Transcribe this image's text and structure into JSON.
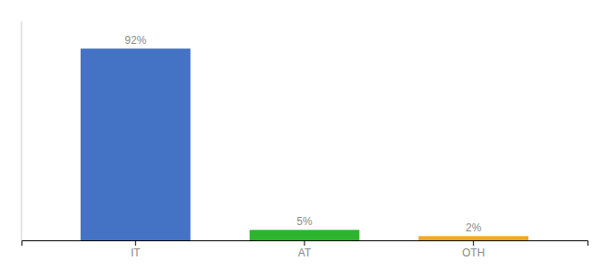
{
  "chart_data": {
    "type": "bar",
    "categories": [
      "IT",
      "AT",
      "OTH"
    ],
    "values": [
      92,
      5,
      2
    ],
    "value_labels": [
      "92%",
      "5%",
      "2%"
    ],
    "colors": [
      "#4472c4",
      "#2db52d",
      "#f5a623"
    ],
    "ylim": [
      0,
      105
    ],
    "data_labels": true,
    "tick_labels": "x"
  }
}
